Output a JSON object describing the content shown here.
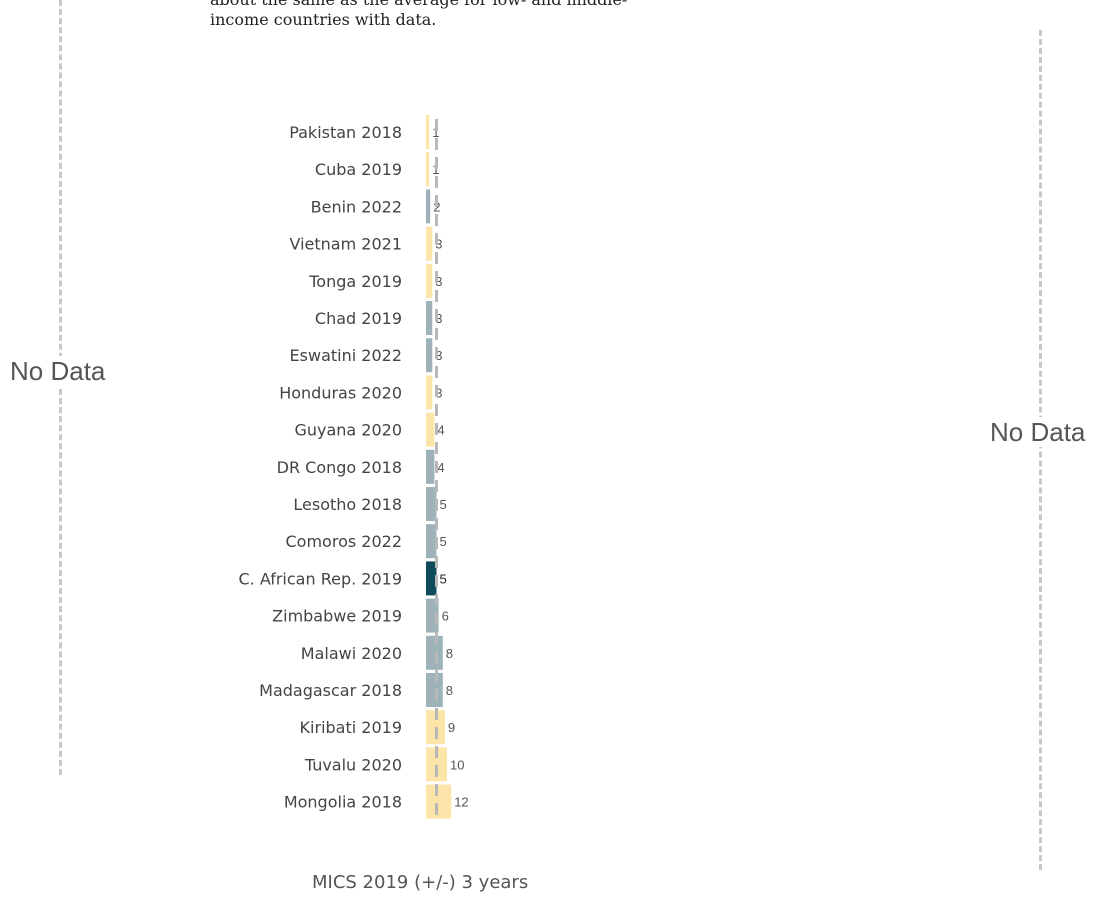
{
  "intro": {
    "line1": "about the same as the average for low- and middle-",
    "line2": "income countries with data."
  },
  "panels": {
    "left_no_data": "No Data",
    "right_no_data": "No Data"
  },
  "chart_data": {
    "type": "bar",
    "orientation": "horizontal",
    "title": "MICS 2019 (+/-) 3 years",
    "categories": [
      "Pakistan 2018",
      "Cuba 2019",
      "Benin 2022",
      "Vietnam 2021",
      "Tonga 2019",
      "Chad 2019",
      "Eswatini 2022",
      "Honduras 2020",
      "Guyana 2020",
      "DR Congo 2018",
      "Lesotho 2018",
      "Comoros 2022",
      "C. African Rep. 2019",
      "Zimbabwe 2019",
      "Malawi 2020",
      "Madagascar 2018",
      "Kiribati 2019",
      "Tuvalu 2020",
      "Mongolia 2018"
    ],
    "values": [
      1,
      1,
      2,
      3,
      3,
      3,
      3,
      3,
      4,
      4,
      5,
      5,
      5,
      6,
      8,
      8,
      9,
      10,
      12
    ],
    "value_labels": [
      "1",
      "1",
      "2",
      "3",
      "3",
      "3",
      "3",
      "3",
      "4",
      "4",
      "5",
      "5",
      "5",
      "6",
      "8",
      "8",
      "9",
      "10",
      "12"
    ],
    "bar_groups": [
      "yellow",
      "yellow",
      "grey",
      "yellow",
      "yellow",
      "grey",
      "grey",
      "yellow",
      "yellow",
      "grey",
      "grey",
      "grey",
      "highlight",
      "grey",
      "grey",
      "grey",
      "yellow",
      "yellow",
      "yellow"
    ],
    "highlight": "C. African Rep. 2019",
    "reference_line_value": 5,
    "colors": {
      "yellow": "#fde4a8",
      "grey": "#9eb3b9",
      "highlight": "#0d4a5a",
      "reference_line": "#b8b8b8",
      "label_text": "#555555"
    }
  }
}
